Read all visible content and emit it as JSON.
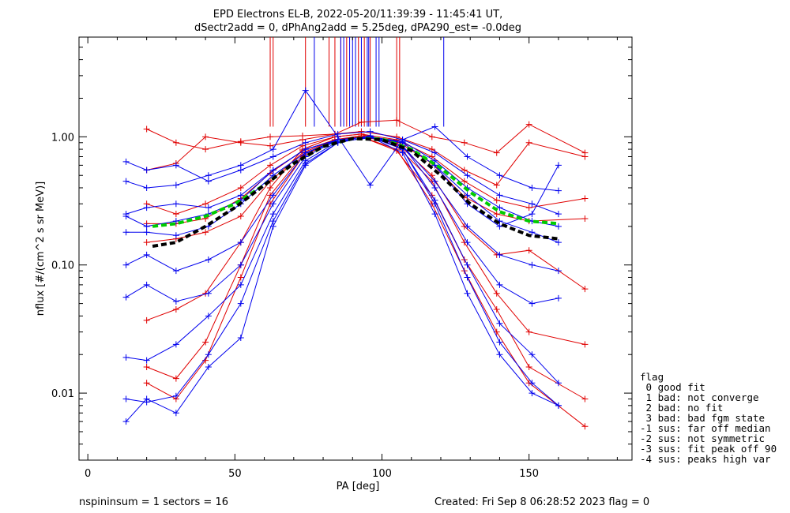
{
  "title_line1": "EPD Electrons EL-B, 2022-05-20/11:39:39 - 11:45:41 UT,",
  "title_line2": "dSectr2add = 0, dPhAng2add = 5.25deg, dPA290_est=  -0.0deg",
  "footer_left": "nspininsum =  1  sectors = 16",
  "footer_right": "Created: Fri Sep  8 06:28:52 2023   flag = 0",
  "legend": {
    "title": "flag",
    "items": [
      " 0 good fit",
      " 1 bad: not converge",
      " 2 bad: no fit",
      " 3 bad: bad fgm state",
      "-1 sus: far off median",
      "-2 sus: not symmetric",
      "-3 sus: fit peak off 90",
      "-4 sus: peaks high var"
    ]
  },
  "colors": {
    "red": "#e00000",
    "blue": "#0000ee",
    "green": "#00cc00",
    "black": "#000000"
  },
  "chart_data": {
    "type": "line",
    "xlabel": "PA [deg]",
    "ylabel": "nflux [#/(cm^2 s sr MeV)]",
    "xlim": [
      -3,
      185
    ],
    "ylim": [
      0.003,
      6.0
    ],
    "yscale": "log",
    "xticks": [
      0,
      50,
      100,
      150
    ],
    "xtick_labels": [
      "0",
      "50",
      "100",
      "150"
    ],
    "yticks": [
      0.01,
      0.1,
      1.0
    ],
    "ytick_labels": [
      "0.01",
      "0.10",
      "1.00"
    ],
    "series": [
      {
        "color": "red",
        "x": [
          20,
          30,
          40,
          52,
          62,
          73,
          84,
          93,
          105,
          117,
          128,
          139,
          150,
          169
        ],
        "values": [
          0.21,
          0.21,
          0.23,
          0.33,
          0.52,
          0.78,
          0.95,
          1.02,
          0.93,
          0.62,
          0.34,
          0.25,
          0.22,
          0.23
        ]
      },
      {
        "color": "red",
        "x": [
          20,
          30,
          40,
          52,
          62,
          73,
          84,
          93,
          105,
          117,
          128,
          139,
          150,
          169
        ],
        "values": [
          0.55,
          0.62,
          1.0,
          0.9,
          0.85,
          0.95,
          1.05,
          1.1,
          1.0,
          0.8,
          0.55,
          0.42,
          0.9,
          0.7
        ]
      },
      {
        "color": "red",
        "x": [
          20,
          30,
          40,
          52,
          62,
          73,
          84,
          93,
          105,
          117,
          128,
          139,
          150,
          169
        ],
        "values": [
          0.012,
          0.009,
          0.018,
          0.08,
          0.3,
          0.7,
          0.95,
          1.0,
          0.8,
          0.3,
          0.09,
          0.03,
          0.012,
          0.0055
        ]
      },
      {
        "color": "red",
        "x": [
          20,
          30,
          40,
          52,
          62,
          73,
          84,
          93,
          105,
          117,
          128,
          139,
          150,
          169
        ],
        "values": [
          0.037,
          0.045,
          0.06,
          0.15,
          0.4,
          0.8,
          1.0,
          1.05,
          0.85,
          0.45,
          0.15,
          0.06,
          0.03,
          0.024
        ]
      },
      {
        "color": "red",
        "x": [
          20,
          30,
          40,
          52,
          62,
          73,
          84,
          93,
          105,
          117,
          128,
          139,
          150,
          169
        ],
        "values": [
          1.15,
          0.9,
          0.8,
          0.92,
          1.0,
          1.02,
          1.05,
          1.3,
          1.35,
          1.0,
          0.9,
          0.75,
          1.25,
          0.75
        ]
      },
      {
        "color": "red",
        "x": [
          20,
          30,
          40,
          52,
          62,
          73,
          84,
          93,
          105,
          117,
          128,
          139,
          150,
          169
        ],
        "values": [
          0.15,
          0.16,
          0.18,
          0.24,
          0.45,
          0.75,
          0.95,
          1.0,
          0.9,
          0.5,
          0.2,
          0.12,
          0.13,
          0.065
        ]
      },
      {
        "color": "red",
        "x": [
          20,
          30,
          40,
          52,
          62,
          73,
          84,
          93,
          105,
          117,
          128,
          139,
          150,
          169
        ],
        "values": [
          0.016,
          0.013,
          0.025,
          0.1,
          0.35,
          0.72,
          0.95,
          1.0,
          0.78,
          0.35,
          0.11,
          0.045,
          0.016,
          0.009
        ]
      },
      {
        "color": "red",
        "x": [
          20,
          30,
          40,
          52,
          62,
          73,
          84,
          93,
          105,
          117,
          128,
          139,
          150,
          169
        ],
        "values": [
          0.3,
          0.25,
          0.3,
          0.4,
          0.6,
          0.85,
          1.0,
          1.05,
          0.95,
          0.7,
          0.45,
          0.32,
          0.28,
          0.33
        ]
      },
      {
        "color": "blue",
        "x": [
          13,
          20,
          30,
          41,
          52,
          63,
          74,
          85,
          96,
          107,
          118,
          129,
          140,
          151,
          160
        ],
        "values": [
          0.18,
          0.18,
          0.17,
          0.2,
          0.3,
          0.5,
          0.75,
          0.92,
          0.98,
          0.9,
          0.6,
          0.35,
          0.22,
          0.18,
          0.15
        ]
      },
      {
        "color": "blue",
        "x": [
          13,
          20,
          30,
          41,
          52,
          63,
          74,
          85,
          96,
          107,
          118,
          129,
          140,
          151,
          160
        ],
        "values": [
          0.64,
          0.55,
          0.6,
          0.45,
          0.55,
          0.7,
          0.9,
          1.05,
          1.1,
          0.95,
          0.75,
          0.5,
          0.35,
          0.3,
          0.25
        ]
      },
      {
        "color": "blue",
        "x": [
          13,
          20,
          30,
          41,
          52,
          63,
          74,
          85,
          96,
          107,
          118,
          129,
          140,
          151,
          160
        ],
        "values": [
          0.006,
          0.009,
          0.007,
          0.016,
          0.027,
          0.2,
          0.6,
          0.9,
          1.0,
          0.8,
          0.3,
          0.08,
          0.025,
          0.012,
          0.008
        ]
      },
      {
        "color": "blue",
        "x": [
          13,
          20,
          30,
          41,
          52,
          63,
          74,
          85,
          96,
          107,
          118,
          129,
          140,
          151,
          160
        ],
        "values": [
          0.056,
          0.07,
          0.052,
          0.06,
          0.1,
          0.3,
          0.7,
          0.95,
          1.0,
          0.85,
          0.4,
          0.15,
          0.07,
          0.05,
          0.055
        ]
      },
      {
        "color": "blue",
        "x": [
          13,
          20,
          30,
          41,
          52,
          63,
          74,
          85,
          96,
          107,
          118,
          129,
          140,
          151,
          160
        ],
        "values": [
          0.25,
          0.28,
          0.3,
          0.28,
          0.35,
          0.55,
          0.8,
          0.95,
          1.0,
          0.92,
          0.65,
          0.4,
          0.28,
          0.22,
          0.2
        ]
      },
      {
        "color": "blue",
        "x": [
          13,
          20,
          30,
          41,
          52,
          63,
          74,
          85,
          96,
          107,
          118,
          129,
          140,
          151,
          160
        ],
        "values": [
          0.019,
          0.018,
          0.024,
          0.04,
          0.07,
          0.25,
          0.65,
          0.92,
          1.02,
          0.8,
          0.32,
          0.1,
          0.035,
          0.02,
          0.012
        ]
      },
      {
        "color": "blue",
        "x": [
          13,
          20,
          30,
          41,
          52,
          63,
          74,
          85,
          96,
          107,
          118,
          129,
          140,
          151,
          160
        ],
        "values": [
          0.1,
          0.12,
          0.09,
          0.11,
          0.15,
          0.35,
          0.75,
          0.95,
          1.0,
          0.85,
          0.45,
          0.2,
          0.12,
          0.1,
          0.09
        ]
      },
      {
        "color": "blue",
        "x": [
          13,
          20,
          30,
          41,
          52,
          63,
          74,
          85,
          96,
          107,
          118,
          129,
          140,
          151,
          160
        ],
        "values": [
          0.45,
          0.4,
          0.42,
          0.5,
          0.6,
          0.8,
          2.3,
          1.0,
          0.42,
          0.95,
          1.2,
          0.7,
          0.5,
          0.4,
          0.38
        ]
      },
      {
        "color": "blue",
        "x": [
          13,
          20,
          30,
          41,
          52,
          63,
          74,
          85,
          96,
          107,
          118,
          129,
          140,
          151,
          160
        ],
        "values": [
          0.24,
          0.2,
          0.22,
          0.25,
          0.32,
          0.55,
          0.8,
          0.95,
          1.0,
          0.9,
          0.6,
          0.3,
          0.2,
          0.25,
          0.6
        ]
      },
      {
        "color": "blue",
        "x": [
          13,
          20,
          30,
          41,
          52,
          63,
          74,
          85,
          96,
          107,
          118,
          129,
          140,
          151,
          160
        ],
        "values": [
          0.009,
          0.0085,
          0.0095,
          0.02,
          0.05,
          0.22,
          0.62,
          0.9,
          1.0,
          0.75,
          0.25,
          0.06,
          0.02,
          0.01,
          0.008
        ]
      },
      {
        "color": "green",
        "dashed": true,
        "x": [
          22,
          30,
          40,
          50,
          60,
          70,
          80,
          90,
          100,
          110,
          120,
          130,
          140,
          150,
          160
        ],
        "values": [
          0.2,
          0.21,
          0.24,
          0.3,
          0.42,
          0.62,
          0.84,
          0.97,
          0.96,
          0.8,
          0.57,
          0.37,
          0.26,
          0.22,
          0.21
        ]
      },
      {
        "color": "black",
        "dashed": true,
        "x": [
          22,
          30,
          40,
          50,
          60,
          70,
          80,
          90,
          100,
          110,
          120,
          130,
          140,
          150,
          160
        ],
        "values": [
          0.14,
          0.15,
          0.2,
          0.28,
          0.42,
          0.62,
          0.84,
          0.97,
          0.95,
          0.78,
          0.5,
          0.3,
          0.21,
          0.17,
          0.16
        ]
      }
    ],
    "spikes": [
      {
        "color": "red",
        "x": [
          62,
          63,
          74,
          82,
          84,
          86,
          88,
          92,
          94,
          96,
          105,
          106
        ]
      },
      {
        "color": "blue",
        "x": [
          77,
          86,
          87,
          89,
          90,
          91,
          93,
          95,
          95.5,
          98,
          99,
          121
        ]
      }
    ]
  }
}
